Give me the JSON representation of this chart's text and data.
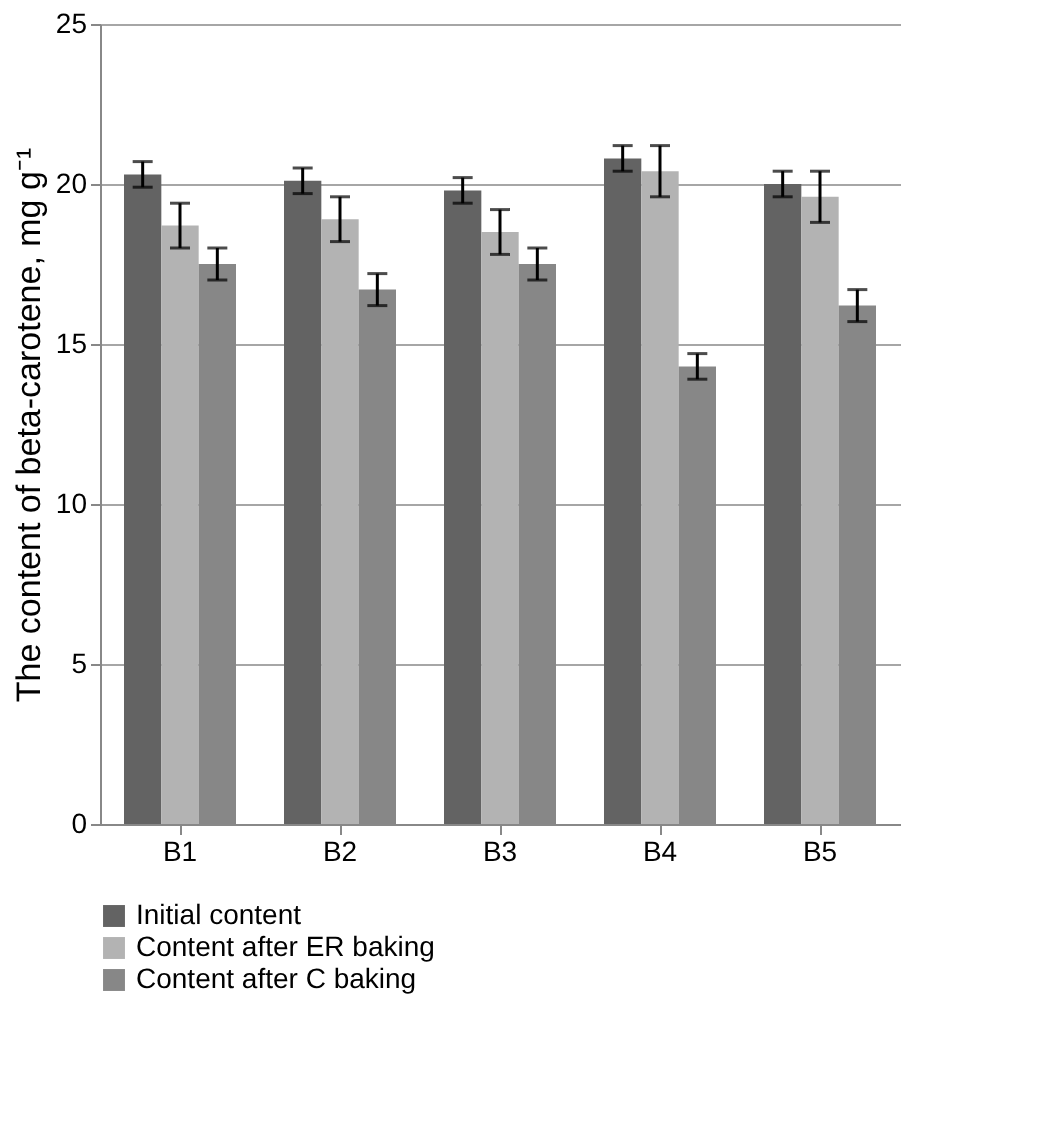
{
  "chart_data": {
    "type": "bar",
    "ylabel": "The content of beta-carotene, mg g⁻¹",
    "categories": [
      "B1",
      "B2",
      "B3",
      "B4",
      "B5"
    ],
    "series": [
      {
        "name": "Initial content",
        "color": "#636363",
        "values": [
          20.3,
          20.1,
          19.8,
          20.8,
          20.0
        ],
        "errors": [
          0.4,
          0.4,
          0.4,
          0.4,
          0.4
        ]
      },
      {
        "name": "Content after ER baking",
        "color": "#b3b3b3",
        "values": [
          18.7,
          18.9,
          18.5,
          20.4,
          19.6
        ],
        "errors": [
          0.7,
          0.7,
          0.7,
          0.8,
          0.8
        ]
      },
      {
        "name": "Content after C baking",
        "color": "#878787",
        "values": [
          17.5,
          16.7,
          17.5,
          14.3,
          16.2
        ],
        "errors": [
          0.5,
          0.5,
          0.5,
          0.4,
          0.5
        ]
      }
    ],
    "ylim": [
      0,
      25
    ],
    "yticks": [
      0,
      5,
      10,
      15,
      20,
      25
    ],
    "grid": "y",
    "legend": "bottom"
  }
}
